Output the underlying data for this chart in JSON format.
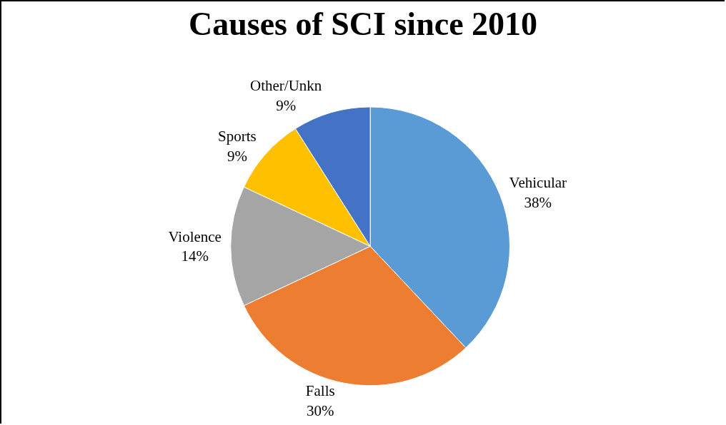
{
  "chart_data": {
    "type": "pie",
    "title": "Causes of SCI since 2010",
    "categories": [
      "Vehicular",
      "Falls",
      "Violence",
      "Sports",
      "Other/Unkn"
    ],
    "values": [
      38,
      30,
      14,
      9,
      9
    ],
    "value_labels": [
      "38%",
      "30%",
      "14%",
      "9%",
      "9%"
    ],
    "colors": [
      "#5b9bd5",
      "#ed7d31",
      "#a5a5a5",
      "#ffc000",
      "#4472c4"
    ],
    "legend": false
  }
}
